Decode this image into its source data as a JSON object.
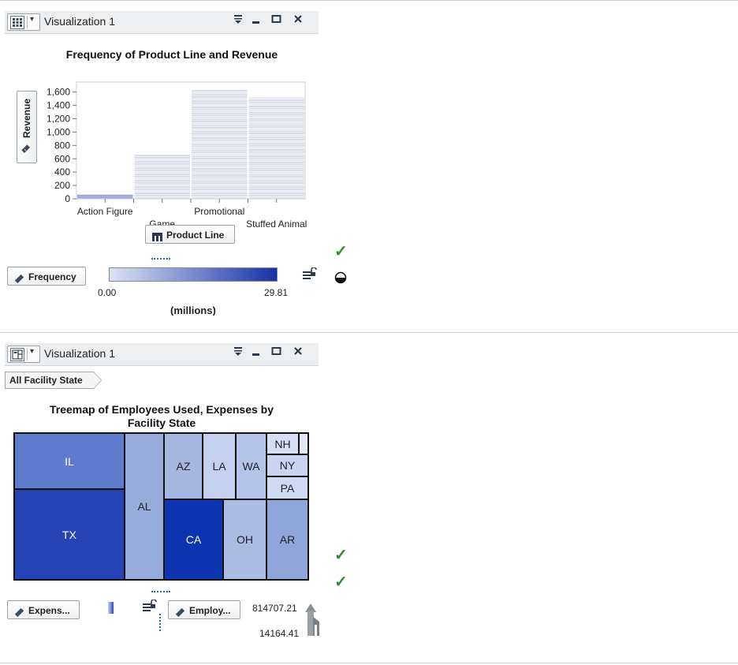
{
  "panel1": {
    "title": "Visualization 1",
    "chart_title": "Frequency of Product Line and Revenue",
    "y_axis_button": "Revenue",
    "x_axis_button": "Product Line",
    "legend_button": "Frequency",
    "legend_min": "0.00",
    "legend_max": "29.81",
    "legend_units": "(millions)",
    "colors": {
      "low": "#dde3f3",
      "high": "#1632a6"
    }
  },
  "panel2": {
    "title": "Visualization 1",
    "breadcrumb": "All Facility State",
    "chart_title_line1": "Treemap of Employees Used, Expenses by",
    "chart_title_line2": "Facility State",
    "size_button": "Expens...",
    "color_button": "Employ...",
    "legend_max": "814707.21",
    "legend_min": "14164.41"
  },
  "chart_data": [
    {
      "type": "heatmap",
      "title": "Frequency of Product Line and Revenue",
      "xlabel": "Product Line",
      "ylabel": "Revenue",
      "categories": [
        "Action Figure",
        "Game",
        "Promotional",
        "Stuffed Animal"
      ],
      "y_ticks": [
        "0",
        "200",
        "400",
        "600",
        "800",
        "1,000",
        "1,200",
        "1,400",
        "1,600"
      ],
      "ylim": [
        0,
        1750
      ],
      "column_max": [
        60,
        660,
        1630,
        1520
      ],
      "color_scale": {
        "label": "Frequency",
        "min": 0.0,
        "max": 29.81,
        "units": "(millions)"
      }
    },
    {
      "type": "treemap",
      "title": "Treemap of Employees Used, Expenses by Facility State",
      "labels": [
        "IL",
        "TX",
        "AL",
        "AZ",
        "LA",
        "WA",
        "NH",
        "NY",
        "PA",
        "CA",
        "OH",
        "AR"
      ],
      "color_range": {
        "min": 14164.41,
        "max": 814707.21
      }
    }
  ]
}
